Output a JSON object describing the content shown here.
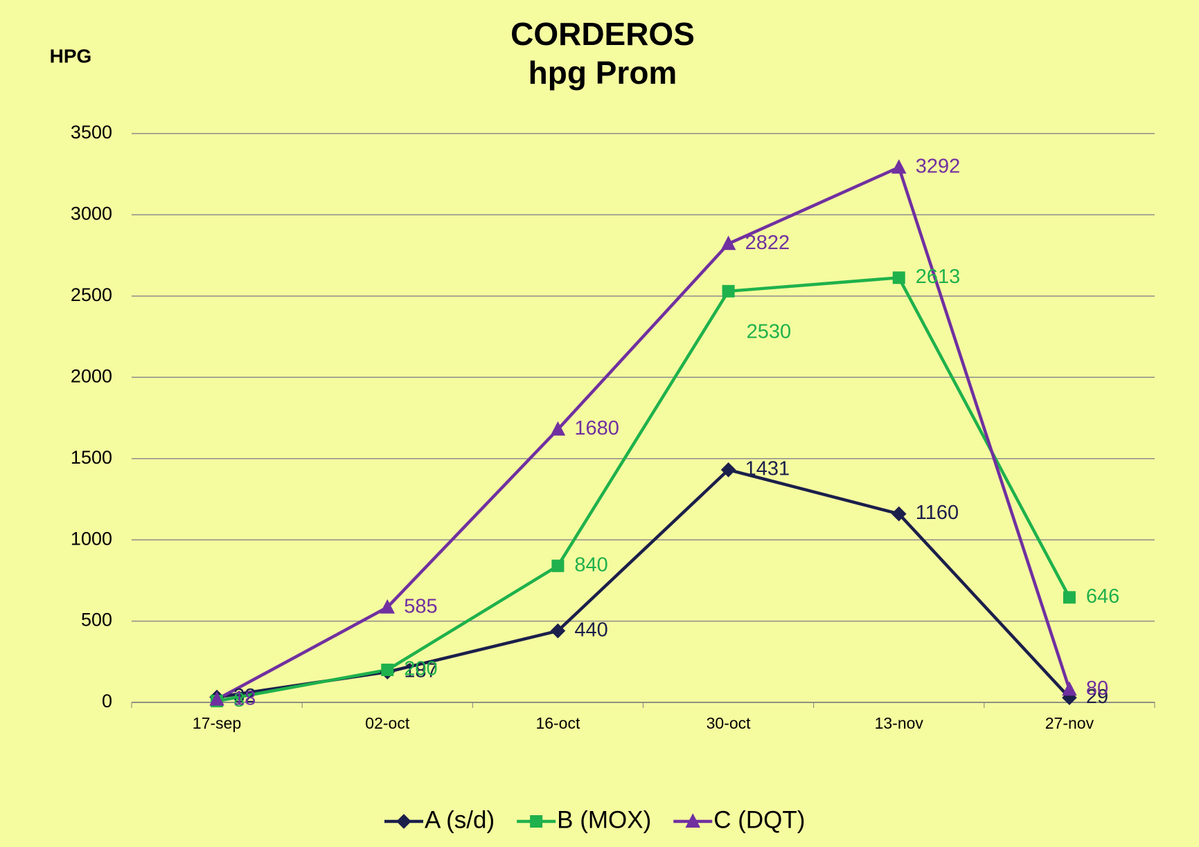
{
  "chart_data": {
    "type": "line",
    "title": "CORDEROS",
    "subtitle": "hpg Prom",
    "y_label": "HPG",
    "categories": [
      "17-sep",
      "02-oct",
      "16-oct",
      "30-oct",
      "13-nov",
      "27-nov"
    ],
    "series": [
      {
        "name": "A (s/d)",
        "color": "#1b1f4b",
        "marker": "diamond",
        "values": [
          32,
          187,
          440,
          1431,
          1160,
          29
        ]
      },
      {
        "name": "B (MOX)",
        "color": "#1fb14c",
        "marker": "square",
        "values": [
          8,
          200,
          840,
          2530,
          2613,
          646
        ]
      },
      {
        "name": "C (DQT)",
        "color": "#7030a0",
        "marker": "triangle",
        "values": [
          18,
          585,
          1680,
          2822,
          3292,
          80
        ]
      }
    ],
    "ylim": [
      0,
      3500
    ],
    "yticks": [
      0,
      500,
      1000,
      1500,
      2000,
      2500,
      3000,
      3500
    ],
    "grid": true,
    "legend": "bottom"
  }
}
